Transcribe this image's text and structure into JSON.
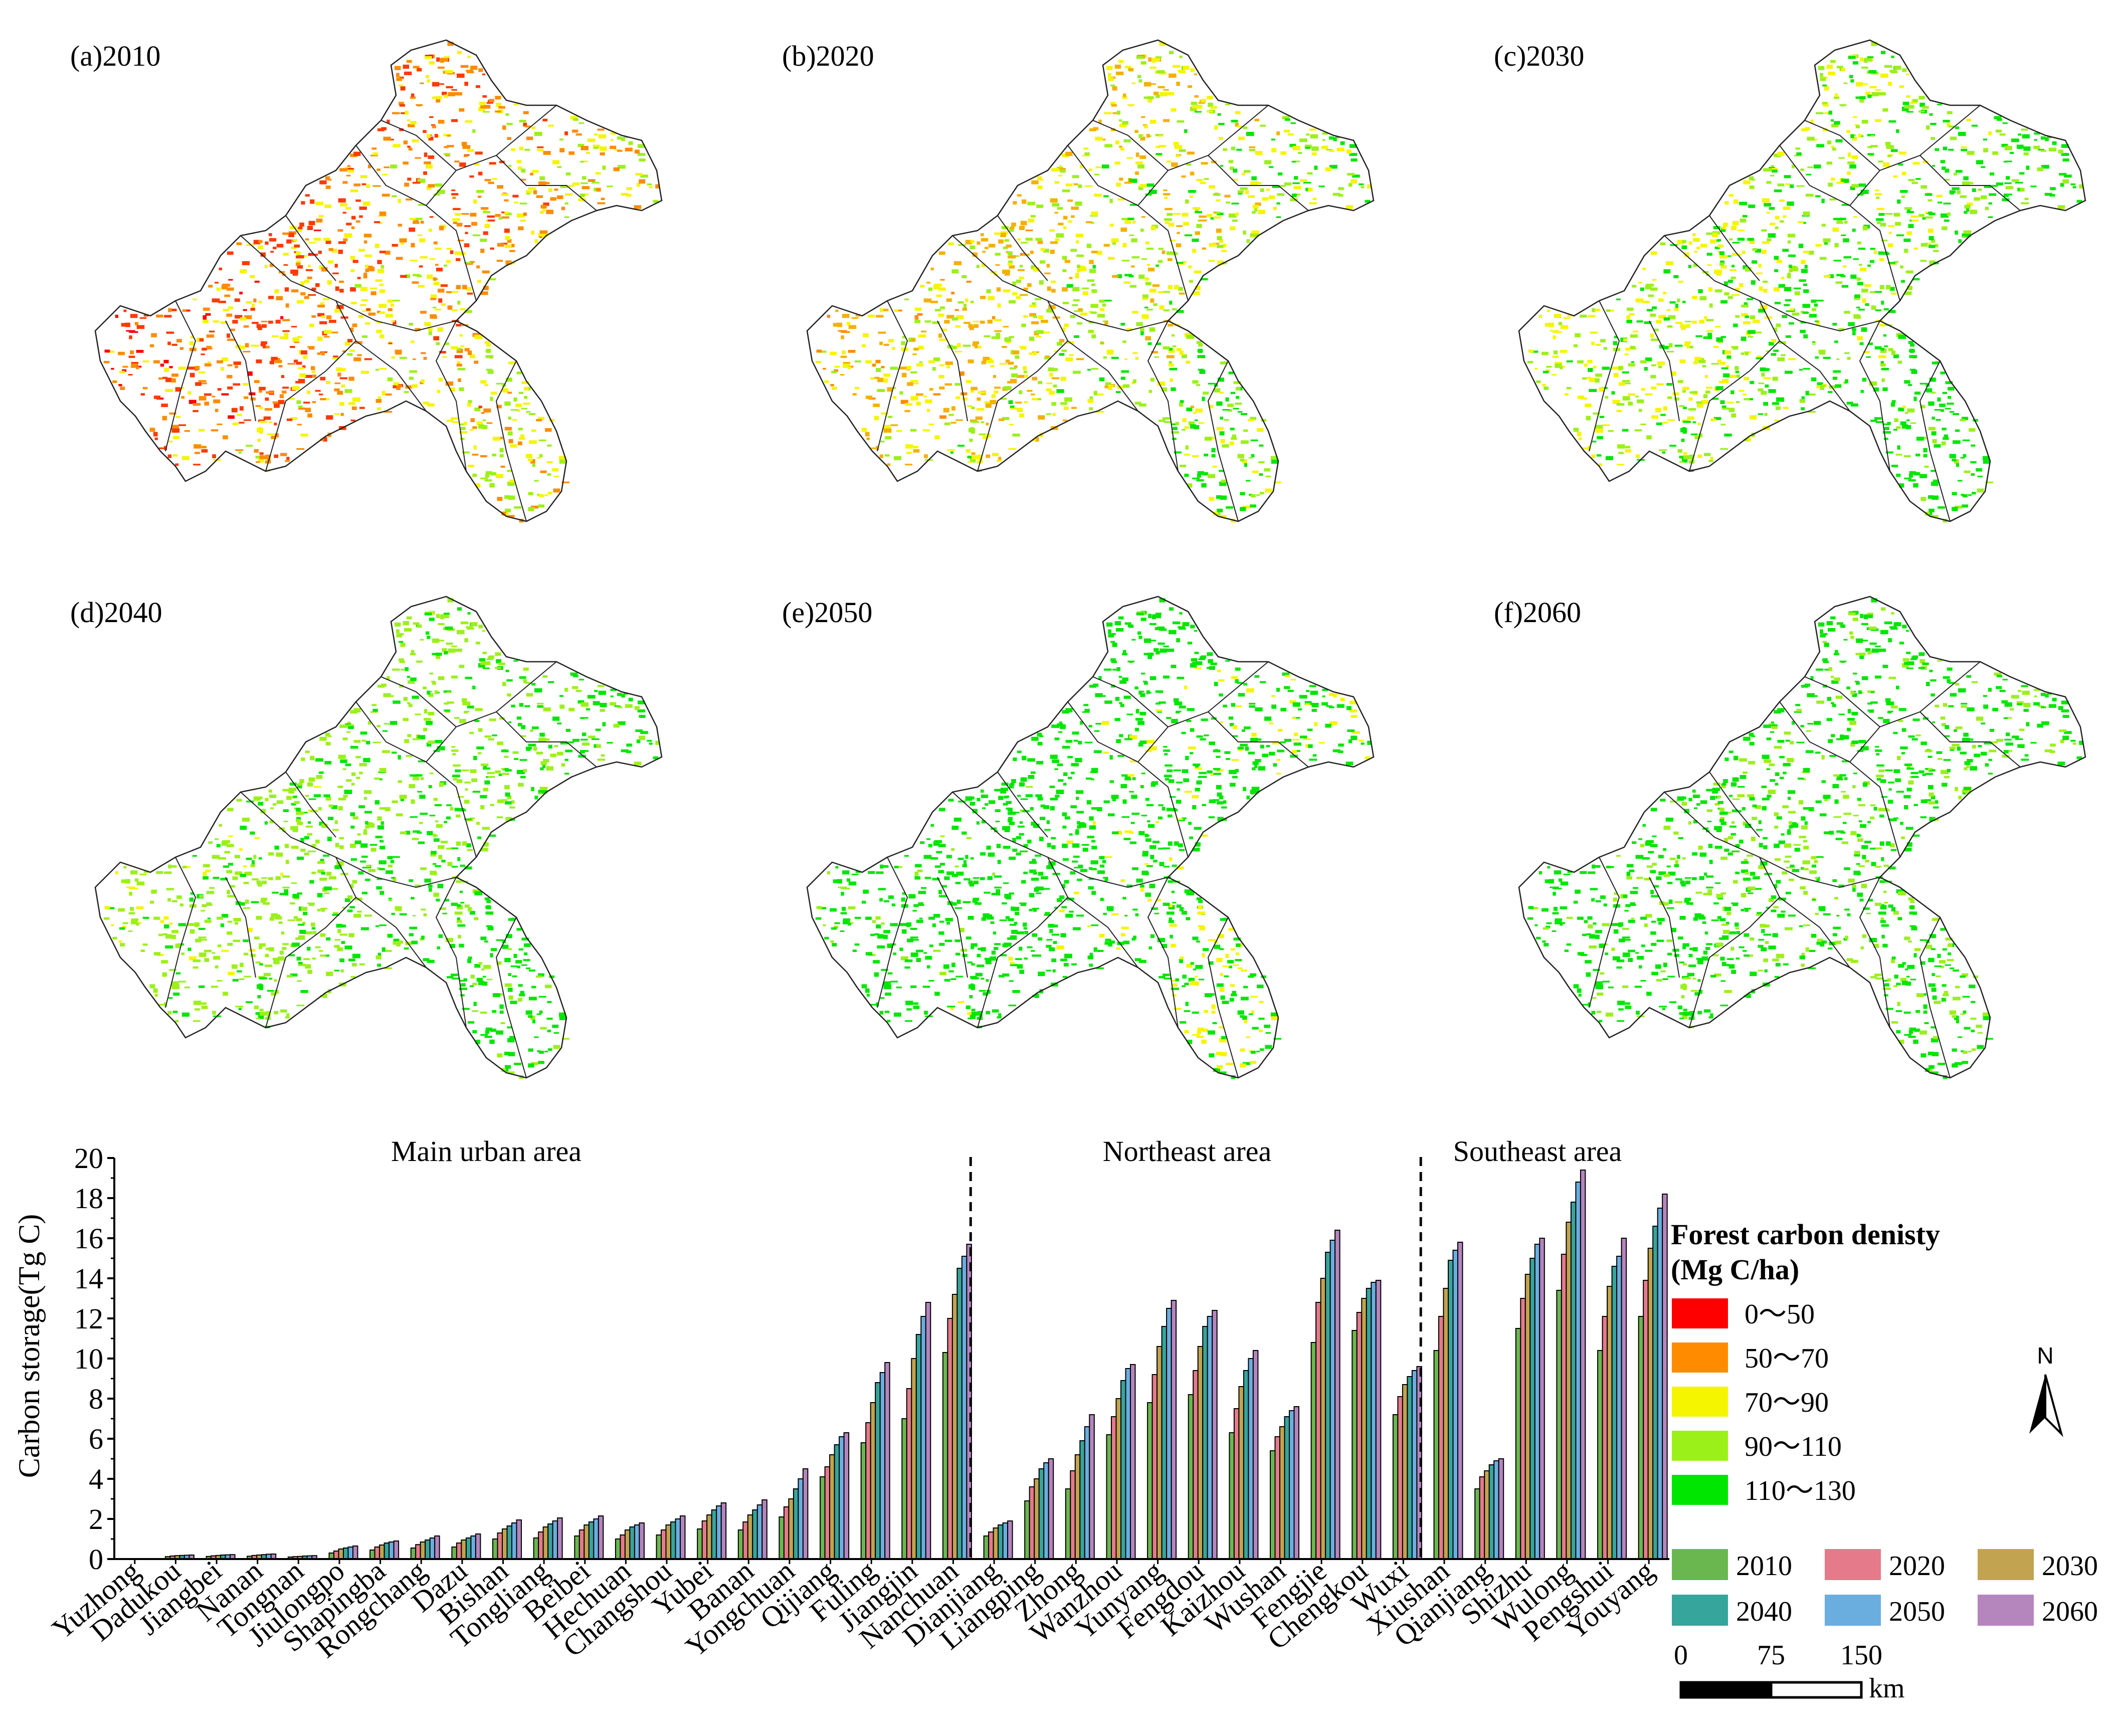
{
  "panels": [
    {
      "label": "(a)2010"
    },
    {
      "label": "(b)2020"
    },
    {
      "label": "(c)2030"
    },
    {
      "label": "(d)2040"
    },
    {
      "label": "(e)2050"
    },
    {
      "label": "(f)2060"
    }
  ],
  "legend": {
    "title_line1": "Forest carbon denisty",
    "title_line2": "(Mg C/ha)",
    "classes": [
      {
        "label": "0～50",
        "color": "#ff0000"
      },
      {
        "label": "50～70",
        "color": "#ff8c00"
      },
      {
        "label": "70～90",
        "color": "#f5f500"
      },
      {
        "label": "90～110",
        "color": "#9cf01a"
      },
      {
        "label": "110～130",
        "color": "#00e600"
      }
    ]
  },
  "north_arrow": {
    "label": "N"
  },
  "scale_bar": {
    "ticks": [
      "0",
      "75",
      "150"
    ],
    "unit": "km"
  },
  "chart_data": {
    "type": "bar",
    "title": "",
    "xlabel": "",
    "ylabel": "Carbon storage(Tg C)",
    "ylim": [
      0,
      20
    ],
    "yticks": [
      0,
      2,
      4,
      6,
      8,
      10,
      12,
      14,
      16,
      18,
      20
    ],
    "region_labels": [
      "Main urban area",
      "Northeast area",
      "Southeast area"
    ],
    "region_dividers_after": [
      "Nanchuan",
      "Wuxi"
    ],
    "categories": [
      "Yuzhong",
      "Dadukou",
      "Jiangbei",
      "Nanan",
      "Tongnan",
      "Jiulongpo",
      "Shapingba",
      "Rongchang",
      "Dazu",
      "Bishan",
      "Tongliang",
      "Beibei",
      "Hechuan",
      "Changshou",
      "Yubei",
      "Banan",
      "Yongchuan",
      "Qijiang",
      "Fuling",
      "Jiangjin",
      "Nanchuan",
      "Dianjiang",
      "Liangping",
      "Zhong",
      "Wanzhou",
      "Yunyang",
      "Fengdou",
      "Kaizhou",
      "Wushan",
      "Fengjie",
      "Chengkou",
      "Wuxi",
      "Xiushan",
      "Qianjiang",
      "Shizhu",
      "Wulong",
      "Pengshui",
      "Youyang"
    ],
    "series": [
      {
        "name": "2010",
        "color": "#6ab74f",
        "values": [
          0.02,
          0.12,
          0.13,
          0.14,
          0.1,
          0.3,
          0.45,
          0.55,
          0.6,
          1.0,
          1.05,
          1.15,
          1.0,
          1.2,
          1.5,
          1.45,
          2.1,
          4.1,
          5.8,
          7.0,
          10.3,
          1.15,
          2.9,
          3.5,
          6.2,
          7.8,
          8.2,
          6.3,
          5.4,
          10.8,
          11.4,
          7.2,
          10.4,
          3.5,
          11.5,
          13.4,
          10.4,
          12.1
        ]
      },
      {
        "name": "2020",
        "color": "#e57a8a",
        "values": [
          0.02,
          0.15,
          0.16,
          0.18,
          0.12,
          0.4,
          0.6,
          0.72,
          0.8,
          1.3,
          1.35,
          1.45,
          1.2,
          1.45,
          1.9,
          1.85,
          2.6,
          4.6,
          6.8,
          8.5,
          12.0,
          1.35,
          3.6,
          4.4,
          7.1,
          9.2,
          9.4,
          7.5,
          6.1,
          12.8,
          12.3,
          8.1,
          12.1,
          4.1,
          13.0,
          15.2,
          12.1,
          13.9
        ]
      },
      {
        "name": "2030",
        "color": "#c2a34f",
        "values": [
          0.02,
          0.17,
          0.18,
          0.2,
          0.13,
          0.5,
          0.7,
          0.85,
          0.95,
          1.5,
          1.6,
          1.7,
          1.45,
          1.7,
          2.2,
          2.2,
          3.0,
          5.2,
          7.8,
          10.0,
          13.2,
          1.55,
          4.0,
          5.2,
          8.0,
          10.6,
          10.6,
          8.6,
          6.6,
          14.0,
          13.0,
          8.7,
          13.5,
          4.4,
          14.2,
          16.8,
          13.6,
          15.5
        ]
      },
      {
        "name": "2040",
        "color": "#36a59b",
        "values": [
          0.02,
          0.18,
          0.2,
          0.22,
          0.15,
          0.55,
          0.8,
          0.95,
          1.05,
          1.65,
          1.75,
          1.85,
          1.6,
          1.85,
          2.45,
          2.45,
          3.5,
          5.7,
          8.8,
          11.2,
          14.5,
          1.7,
          4.5,
          5.9,
          8.9,
          11.6,
          11.6,
          9.4,
          7.1,
          15.3,
          13.5,
          9.1,
          14.9,
          4.7,
          15.0,
          17.8,
          14.6,
          16.6
        ]
      },
      {
        "name": "2050",
        "color": "#6aaee0",
        "values": [
          0.02,
          0.19,
          0.21,
          0.24,
          0.16,
          0.6,
          0.85,
          1.05,
          1.15,
          1.8,
          1.9,
          2.0,
          1.7,
          2.0,
          2.65,
          2.7,
          4.0,
          6.1,
          9.3,
          12.1,
          15.1,
          1.8,
          4.8,
          6.6,
          9.5,
          12.5,
          12.1,
          10.0,
          7.4,
          15.9,
          13.8,
          9.4,
          15.4,
          4.9,
          15.7,
          18.8,
          15.1,
          17.5
        ]
      },
      {
        "name": "2060",
        "color": "#b585be",
        "values": [
          0.02,
          0.2,
          0.22,
          0.25,
          0.17,
          0.65,
          0.9,
          1.15,
          1.25,
          1.95,
          2.05,
          2.15,
          1.8,
          2.15,
          2.8,
          2.95,
          4.5,
          6.3,
          9.8,
          12.8,
          15.7,
          1.9,
          5.0,
          7.2,
          9.7,
          12.9,
          12.4,
          10.4,
          7.6,
          16.4,
          13.9,
          9.6,
          15.8,
          5.0,
          16.0,
          19.4,
          16.0,
          18.2
        ]
      }
    ]
  }
}
